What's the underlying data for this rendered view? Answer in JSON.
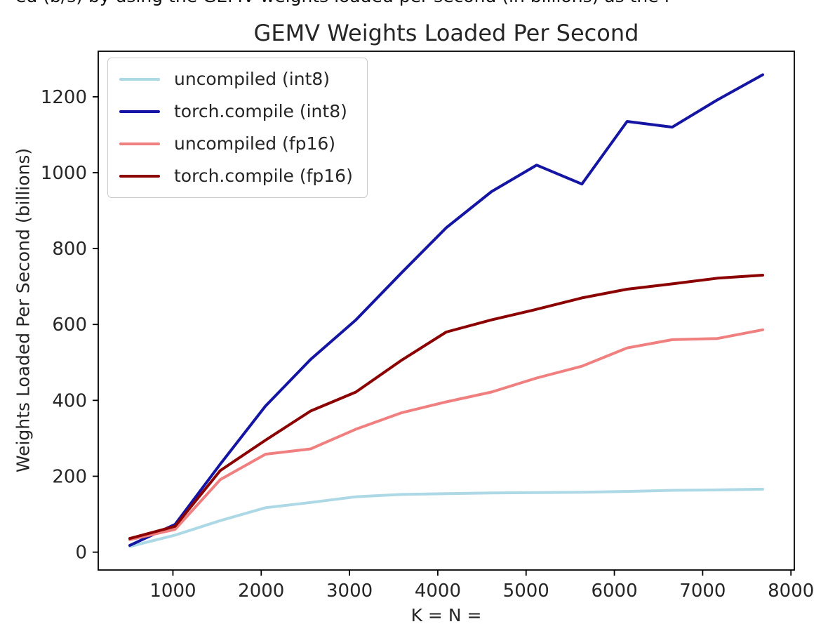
{
  "top_clipped_text": "ed (b/s) by using the GEMV weights loaded per second (in billions) as the figure of merit",
  "chart_data": {
    "type": "line",
    "title": "GEMV Weights Loaded Per Second",
    "xlabel": "K = N =",
    "ylabel": "Weights Loaded Per Second (billions)",
    "grid": false,
    "legend_position": "upper-left",
    "xlim": [
      154,
      8038
    ],
    "ylim": [
      -47,
      1320
    ],
    "xticks": [
      1000,
      2000,
      3000,
      4000,
      5000,
      6000,
      7000,
      8000
    ],
    "yticks": [
      0,
      200,
      400,
      600,
      800,
      1000,
      1200
    ],
    "x": [
      512,
      1024,
      1536,
      2048,
      2560,
      3072,
      3584,
      4096,
      4608,
      5120,
      5632,
      6144,
      6656,
      7168,
      7680
    ],
    "series": [
      {
        "name": "uncompiled (int8)",
        "color": "#add8e6",
        "values": [
          15,
          45,
          83,
          117,
          131,
          146,
          152,
          154,
          156,
          157,
          158,
          160,
          163,
          164,
          166
        ]
      },
      {
        "name": "torch.compile (int8)",
        "color": "#1515a3",
        "values": [
          18,
          73,
          232,
          385,
          508,
          612,
          735,
          855,
          950,
          1020,
          970,
          1135,
          1120,
          1192,
          1258
        ]
      },
      {
        "name": "uncompiled (fp16)",
        "color": "#f08080",
        "values": [
          33,
          60,
          191,
          258,
          272,
          324,
          367,
          396,
          422,
          459,
          490,
          538,
          560,
          563,
          586
        ]
      },
      {
        "name": "torch.compile (fp16)",
        "color": "#8b0000",
        "values": [
          36,
          68,
          215,
          295,
          372,
          422,
          505,
          580,
          612,
          640,
          670,
          693,
          707,
          722,
          730
        ]
      }
    ]
  }
}
